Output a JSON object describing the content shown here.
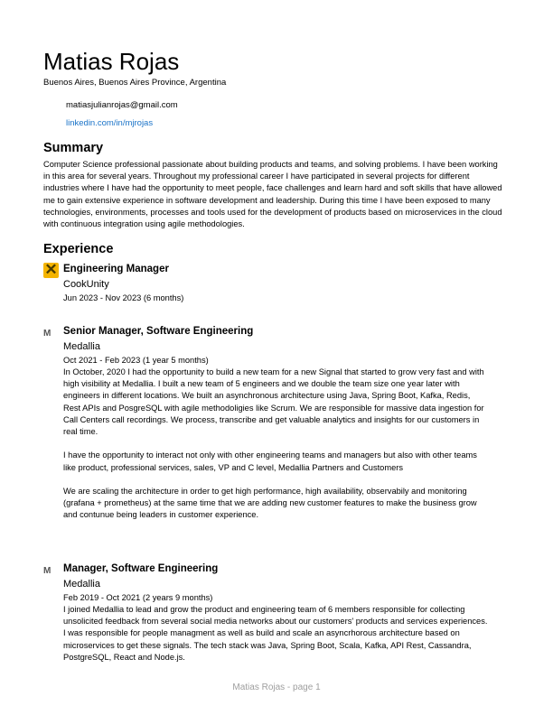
{
  "header": {
    "name": "Matias Rojas",
    "location": "Buenos Aires, Buenos Aires Province, Argentina",
    "email": "matiasjulianrojas@gmail.com",
    "linkedin": "linkedin.com/in/mjrojas"
  },
  "summary": {
    "title": "Summary",
    "text": "Computer Science professional passionate about building products and teams, and solving problems. I have been working in this area for several years. Throughout my professional career I have participated in several projects for different industries where I have had the opportunity to meet people, face challenges and learn hard and soft skills that have allowed me to gain extensive experience in software development and leadership. During this time I have been exposed to many technologies, environments, processes and tools used for the development of products based on microservices in the cloud with continuous integration using agile methodologies."
  },
  "experience": {
    "title": "Experience",
    "jobs": [
      {
        "logo_icon": "cookunity-logo-icon",
        "logo_glyph": "✕",
        "role": "Engineering Manager",
        "company": "CookUnity",
        "dates": "Jun 2023 - Nov 2023 (6 months)"
      },
      {
        "logo_icon": "medallia-logo-icon",
        "logo_glyph": "M",
        "role": "Senior Manager, Software Engineering",
        "company": "Medallia",
        "dates": "Oct 2021 - Feb 2023 (1 year 5 months)",
        "paragraphs": [
          "In October, 2020 I had the opportunity to build a new team for a new Signal that started to grow very fast and with high visibility at Medallia. I built a new team of 5 engineers and we double the team size one year later with engineers in different locations. We built an asynchronous architecture using Java, Spring Boot, Kafka, Redis, Rest APIs and PosgreSQL with agile methodoligies like Scrum. We are responsible for massive data ingestion for Call Centers call recordings. We process, transcribe and get valuable analytics and insights for our customers in real time.",
          "I have the opportunity to interact not only with other engineering teams and managers but also with other teams like product, professional services, sales, VP and C level, Medallia Partners and Customers",
          "We are scaling the architecture in order to get high performance, high availability, observabily and monitoring (grafana + prometheus) at the same time that we are adding new customer features to make the business grow and contunue being leaders in customer experience."
        ]
      },
      {
        "logo_icon": "medallia-logo-icon",
        "logo_glyph": "M",
        "role": "Manager, Software Engineering",
        "company": "Medallia",
        "dates": "Feb 2019 - Oct 2021 (2 years 9 months)",
        "paragraphs": [
          "I joined Medallia to lead and grow the product and engineering team of 6 members responsible for collecting unsolicited feedback from several social media networks about our customers' products and services experiences. I was responsible for people managment as well as build and scale an asyncrhorous architecture based on microservices to get these signals. The tech stack was Java, Spring Boot, Scala, Kafka, API Rest, Cassandra, PostgreSQL, React and Node.js."
        ]
      }
    ]
  },
  "footer": {
    "page_label": "Matias Rojas - page 1"
  }
}
